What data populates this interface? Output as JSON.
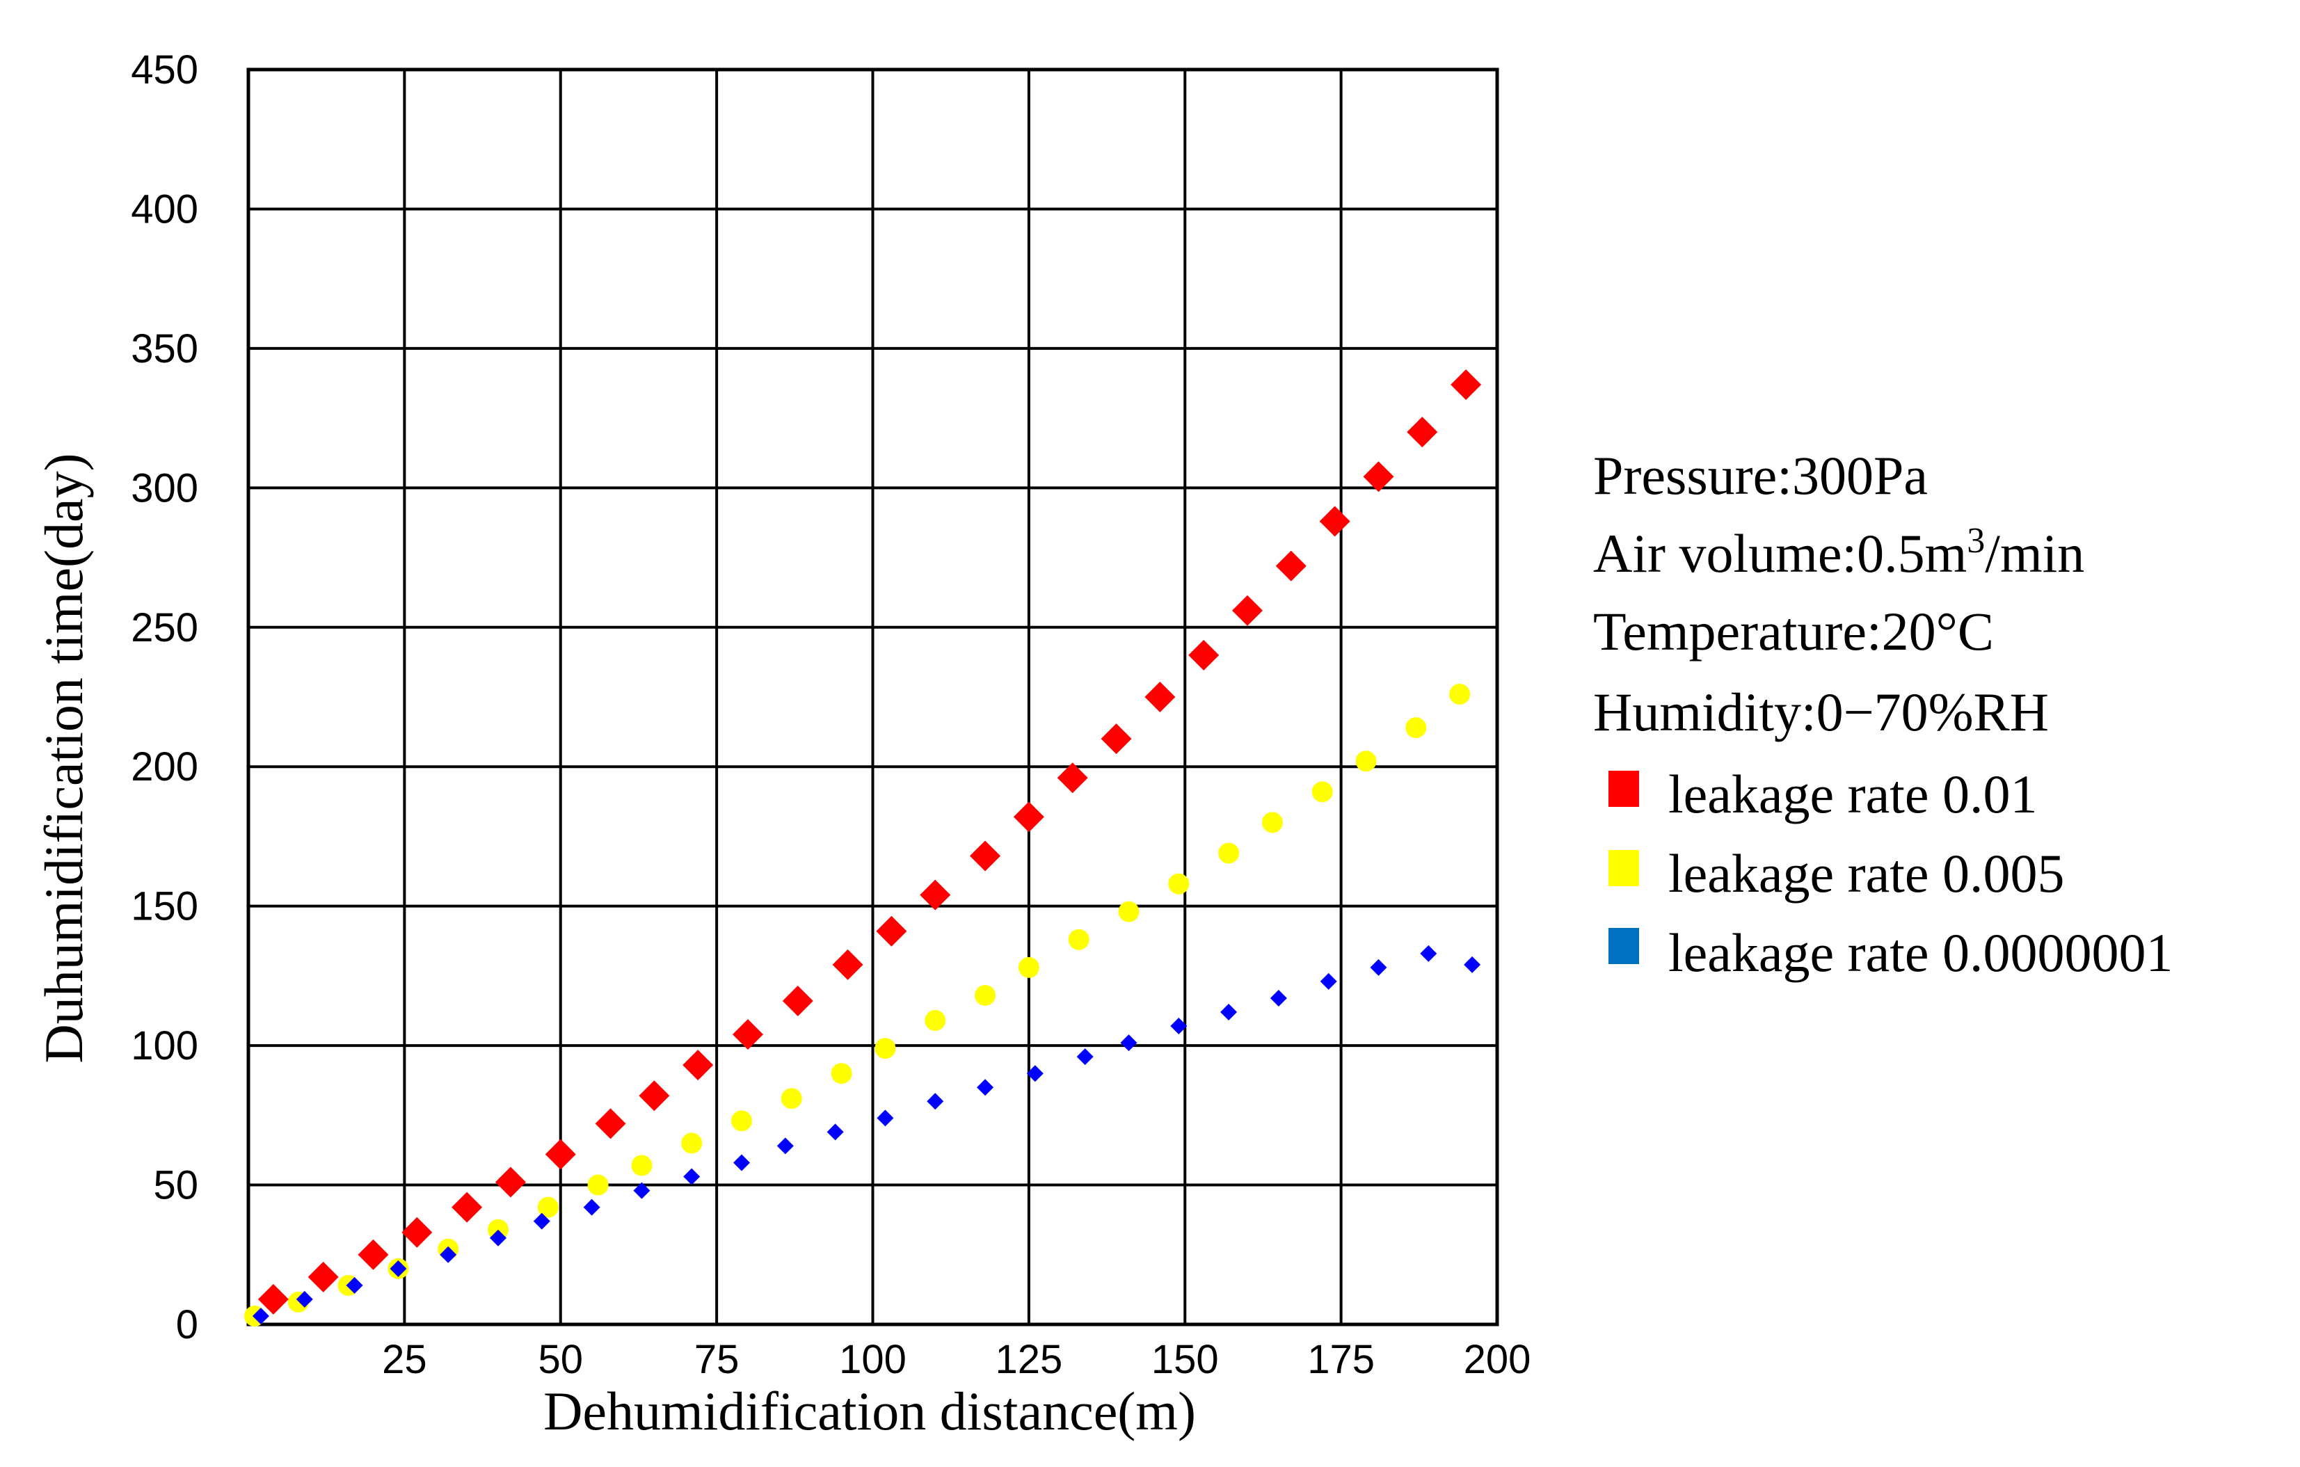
{
  "chart_data": {
    "type": "scatter",
    "title": "",
    "xlabel": "Dehumidification distance(m)",
    "ylabel": "Duhumidification time(day)",
    "xlim": [
      0,
      200
    ],
    "ylim": [
      0,
      450
    ],
    "grid": true,
    "x_ticks": [
      {
        "value": 25,
        "label": "25"
      },
      {
        "value": 50,
        "label": "50"
      },
      {
        "value": 75,
        "label": "75"
      },
      {
        "value": 100,
        "label": "100"
      },
      {
        "value": 125,
        "label": "125"
      },
      {
        "value": 150,
        "label": "150"
      },
      {
        "value": 175,
        "label": "175"
      },
      {
        "value": 200,
        "label": "200"
      }
    ],
    "y_ticks": [
      {
        "value": 0,
        "label": "0"
      },
      {
        "value": 50,
        "label": "50"
      },
      {
        "value": 100,
        "label": "100"
      },
      {
        "value": 150,
        "label": "150"
      },
      {
        "value": 200,
        "label": "200"
      },
      {
        "value": 250,
        "label": "250"
      },
      {
        "value": 300,
        "label": "300"
      },
      {
        "value": 350,
        "label": "350"
      },
      {
        "value": 400,
        "label": "400"
      },
      {
        "value": 450,
        "label": "450"
      }
    ],
    "annotations": {
      "pressure": "Pressure:300Pa",
      "air_volume_prefix": "Air volume:0.5m",
      "air_volume_sup": "3",
      "air_volume_suffix": "/min",
      "temperature": "Temperature:20°C",
      "humidity": "Humidity:0−70%RH"
    },
    "legend_position": "right",
    "series": [
      {
        "name": "leakage rate 0.01",
        "color": "#ff0000",
        "legend_color": "#ff0000",
        "marker": "diamond-large",
        "x": [
          4,
          12,
          20,
          27,
          35,
          42,
          50,
          58,
          65,
          72,
          80,
          88,
          96,
          103,
          110,
          118,
          125,
          132,
          139,
          146,
          153,
          160,
          167,
          174,
          181,
          188,
          195
        ],
        "y": [
          9,
          17,
          25,
          33,
          42,
          51,
          61,
          72,
          82,
          93,
          104,
          116,
          129,
          141,
          154,
          168,
          182,
          196,
          210,
          225,
          240,
          256,
          272,
          288,
          304,
          320,
          337
        ]
      },
      {
        "name": "leakage rate 0.005",
        "color": "#ffff00",
        "legend_color": "#ffff00",
        "marker": "circle",
        "x": [
          1,
          8,
          16,
          24,
          32,
          40,
          48,
          56,
          63,
          71,
          79,
          87,
          95,
          102,
          110,
          118,
          125,
          133,
          141,
          149,
          157,
          164,
          172,
          179,
          187,
          194
        ],
        "y": [
          3,
          8,
          14,
          20,
          27,
          34,
          42,
          50,
          57,
          65,
          73,
          81,
          90,
          99,
          109,
          118,
          128,
          138,
          148,
          158,
          169,
          180,
          191,
          202,
          214,
          226
        ]
      },
      {
        "name": "leakage rate 0.0000001",
        "color": "#0000ff",
        "legend_color": "#0070c0",
        "marker": "diamond-small",
        "x": [
          2,
          9,
          17,
          24,
          32,
          40,
          47,
          55,
          63,
          71,
          79,
          86,
          94,
          102,
          110,
          118,
          126,
          134,
          141,
          149,
          157,
          165,
          173,
          181,
          189,
          196
        ],
        "y": [
          3,
          9,
          14,
          20,
          25,
          31,
          37,
          42,
          48,
          53,
          58,
          64,
          69,
          74,
          80,
          85,
          90,
          96,
          101,
          107,
          112,
          117,
          123,
          128,
          133,
          129
        ]
      }
    ]
  }
}
